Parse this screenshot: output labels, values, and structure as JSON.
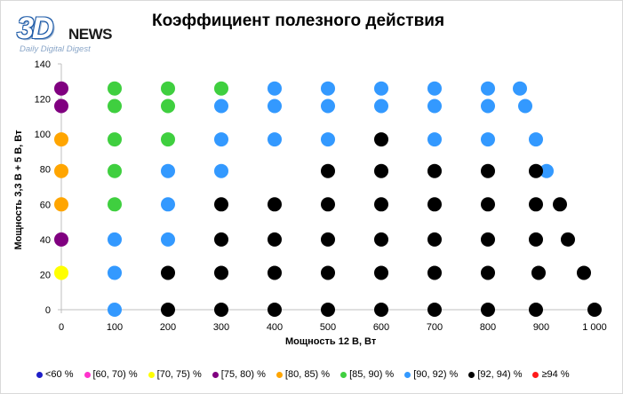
{
  "logo": {
    "mark": "3D",
    "word": "NEWS",
    "tagline": "Daily Digital Digest"
  },
  "chart_data": {
    "type": "scatter",
    "title": "Коэффициент полезного действия",
    "xlabel": "Мощность  12 В, Вт",
    "ylabel": "Мощность  3,3 В + 5 В, Вт",
    "xlim": [
      0,
      1000
    ],
    "ylim": [
      0,
      140
    ],
    "x_ticks": [
      "0",
      "100",
      "200",
      "300",
      "400",
      "500",
      "600",
      "700",
      "800",
      "900",
      "1 000"
    ],
    "y_ticks": [
      "0",
      "20",
      "40",
      "60",
      "80",
      "100",
      "120",
      "140"
    ],
    "grid": false,
    "legend_position": "bottom",
    "series": [
      {
        "name": "<60 %",
        "color": "#1f1fc8",
        "points": []
      },
      {
        "name": "[60, 70) %",
        "color": "#ff33cc",
        "points": []
      },
      {
        "name": "[70, 75) %",
        "color": "#ffff00",
        "points": [
          [
            0,
            21
          ]
        ]
      },
      {
        "name": "[75, 80) %",
        "color": "#800080",
        "points": [
          [
            0,
            40
          ],
          [
            0,
            116
          ],
          [
            0,
            126
          ]
        ]
      },
      {
        "name": "[80, 85) %",
        "color": "#ffa500",
        "points": [
          [
            0,
            60
          ],
          [
            0,
            79
          ],
          [
            0,
            97
          ]
        ]
      },
      {
        "name": "[85, 90) %",
        "color": "#3fcf3f",
        "points": [
          [
            100,
            60
          ],
          [
            100,
            79
          ],
          [
            100,
            97
          ],
          [
            100,
            116
          ],
          [
            100,
            126
          ],
          [
            200,
            97
          ],
          [
            200,
            116
          ],
          [
            200,
            126
          ],
          [
            300,
            126
          ]
        ]
      },
      {
        "name": "[90, 92) %",
        "color": "#3399ff",
        "points": [
          [
            100,
            0
          ],
          [
            100,
            21
          ],
          [
            100,
            40
          ],
          [
            200,
            40
          ],
          [
            200,
            60
          ],
          [
            200,
            79
          ],
          [
            300,
            79
          ],
          [
            300,
            97
          ],
          [
            300,
            116
          ],
          [
            400,
            97
          ],
          [
            400,
            116
          ],
          [
            400,
            126
          ],
          [
            500,
            97
          ],
          [
            500,
            116
          ],
          [
            500,
            126
          ],
          [
            600,
            116
          ],
          [
            600,
            126
          ],
          [
            700,
            97
          ],
          [
            700,
            116
          ],
          [
            700,
            126
          ],
          [
            800,
            97
          ],
          [
            800,
            116
          ],
          [
            800,
            126
          ],
          [
            860,
            126
          ],
          [
            870,
            116
          ],
          [
            890,
            97
          ],
          [
            910,
            79
          ]
        ]
      },
      {
        "name": "[92, 94) %",
        "color": "#000000",
        "points": [
          [
            200,
            0
          ],
          [
            200,
            21
          ],
          [
            300,
            0
          ],
          [
            300,
            21
          ],
          [
            300,
            40
          ],
          [
            300,
            60
          ],
          [
            400,
            0
          ],
          [
            400,
            21
          ],
          [
            400,
            40
          ],
          [
            400,
            60
          ],
          [
            500,
            0
          ],
          [
            500,
            21
          ],
          [
            500,
            40
          ],
          [
            500,
            60
          ],
          [
            500,
            79
          ],
          [
            600,
            0
          ],
          [
            600,
            21
          ],
          [
            600,
            40
          ],
          [
            600,
            60
          ],
          [
            600,
            79
          ],
          [
            600,
            97
          ],
          [
            700,
            0
          ],
          [
            700,
            21
          ],
          [
            700,
            40
          ],
          [
            700,
            60
          ],
          [
            700,
            79
          ],
          [
            800,
            0
          ],
          [
            800,
            21
          ],
          [
            800,
            40
          ],
          [
            800,
            60
          ],
          [
            800,
            79
          ],
          [
            890,
            0
          ],
          [
            890,
            40
          ],
          [
            890,
            60
          ],
          [
            890,
            79
          ],
          [
            895,
            21
          ],
          [
            935,
            60
          ],
          [
            950,
            40
          ],
          [
            980,
            21
          ],
          [
            1000,
            0
          ]
        ]
      },
      {
        "name": "≥94 %",
        "color": "#ff1a1a",
        "points": []
      }
    ]
  }
}
